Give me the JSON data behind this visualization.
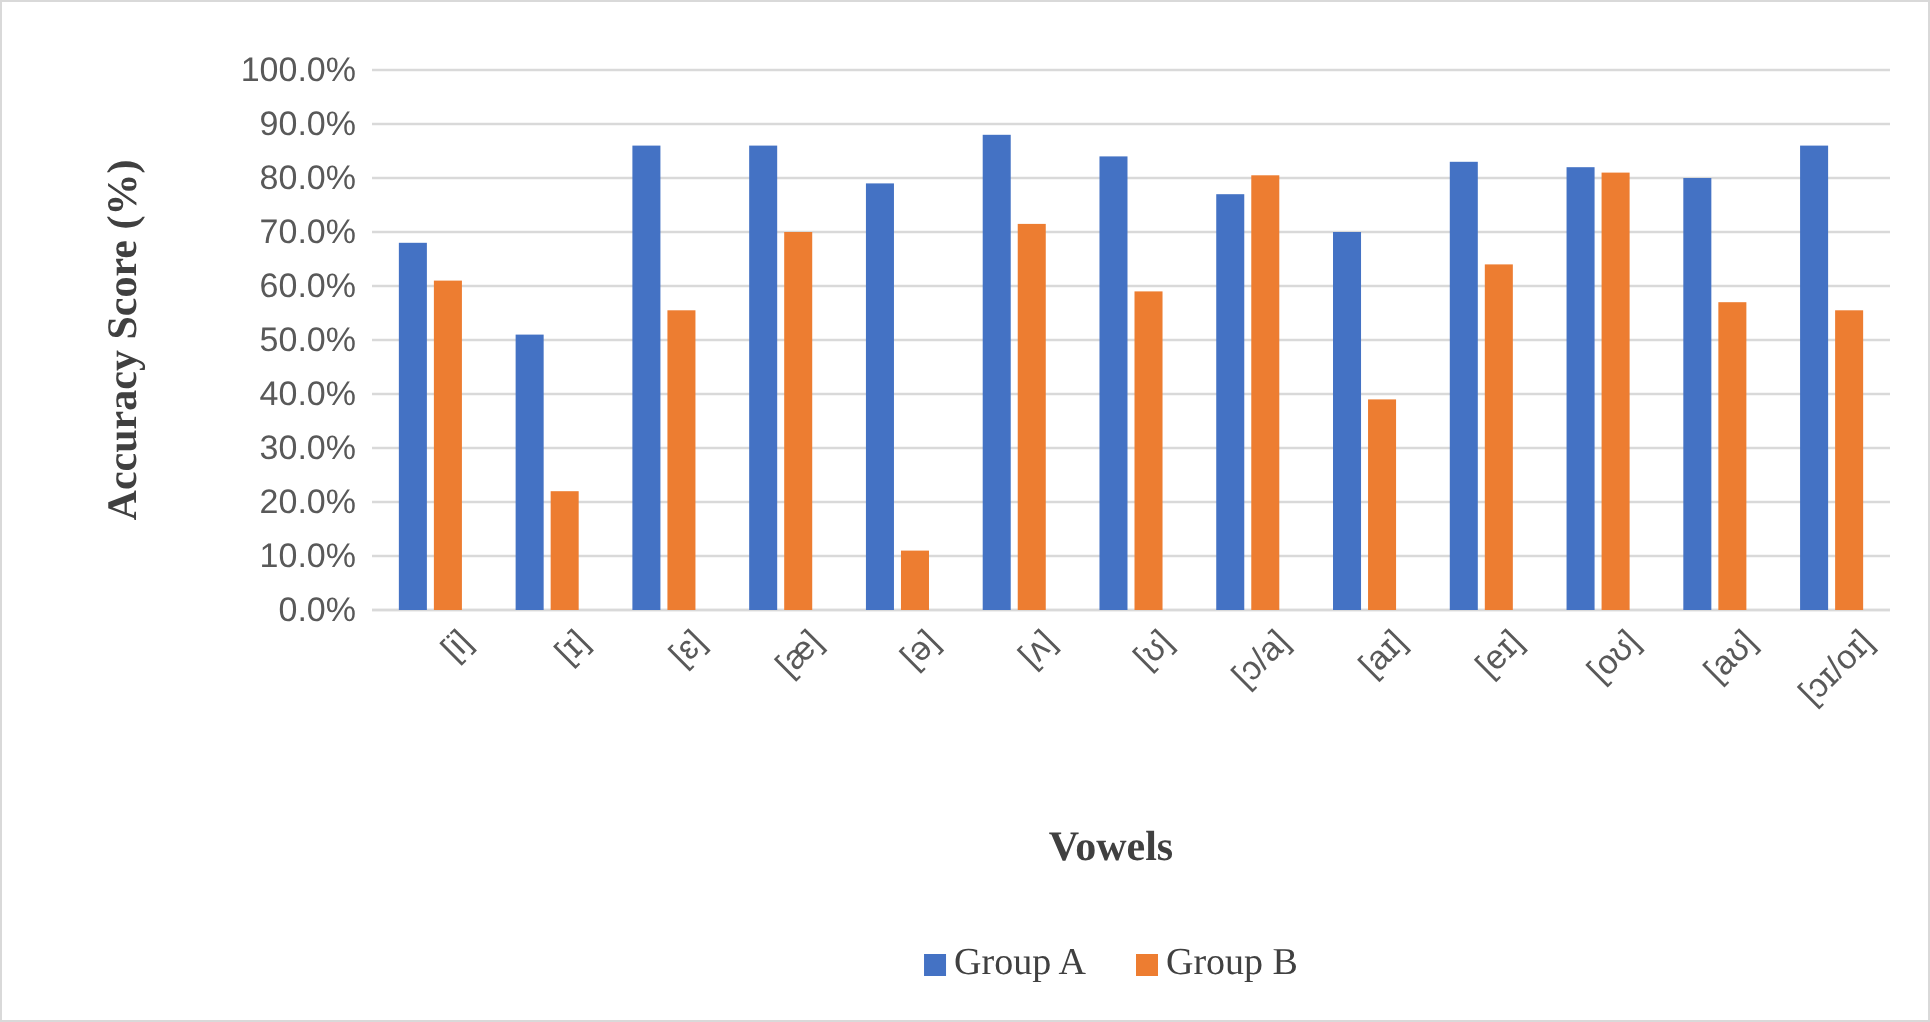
{
  "chart_data": {
    "type": "bar",
    "xlabel": "Vowels",
    "ylabel": "Accuracy Score (%)",
    "categories": [
      "[i]",
      "[ɪ]",
      "[ɛ]",
      "[æ]",
      "[ə]",
      "[ʌ]",
      "[ʊ]",
      "[ɔ/a]",
      "[aɪ]",
      "[eɪ]",
      "[oʊ]",
      "[aʊ]",
      "[ɔɪ/oɪ]"
    ],
    "series": [
      {
        "name": "Group A",
        "color": "#4472c4",
        "values": [
          68,
          51,
          86,
          86,
          79,
          88,
          84,
          77,
          70,
          83,
          82,
          80,
          86
        ]
      },
      {
        "name": "Group B",
        "color": "#ed7d31",
        "values": [
          61,
          22,
          55.5,
          70,
          11,
          71.5,
          59,
          80.5,
          39,
          64,
          81,
          57,
          55.5
        ]
      }
    ],
    "ylim": [
      0,
      100
    ],
    "yticks": [
      {
        "value": 0,
        "label": "0.0%"
      },
      {
        "value": 10,
        "label": "10.0%"
      },
      {
        "value": 20,
        "label": "20.0%"
      },
      {
        "value": 30,
        "label": "30.0%"
      },
      {
        "value": 40,
        "label": "40.0%"
      },
      {
        "value": 50,
        "label": "50.0%"
      },
      {
        "value": 60,
        "label": "60.0%"
      },
      {
        "value": 70,
        "label": "70.0%"
      },
      {
        "value": 80,
        "label": "80.0%"
      },
      {
        "value": 90,
        "label": "90.0%"
      },
      {
        "value": 100,
        "label": "100.0%"
      }
    ],
    "grid": "y",
    "legend": "bottom"
  }
}
